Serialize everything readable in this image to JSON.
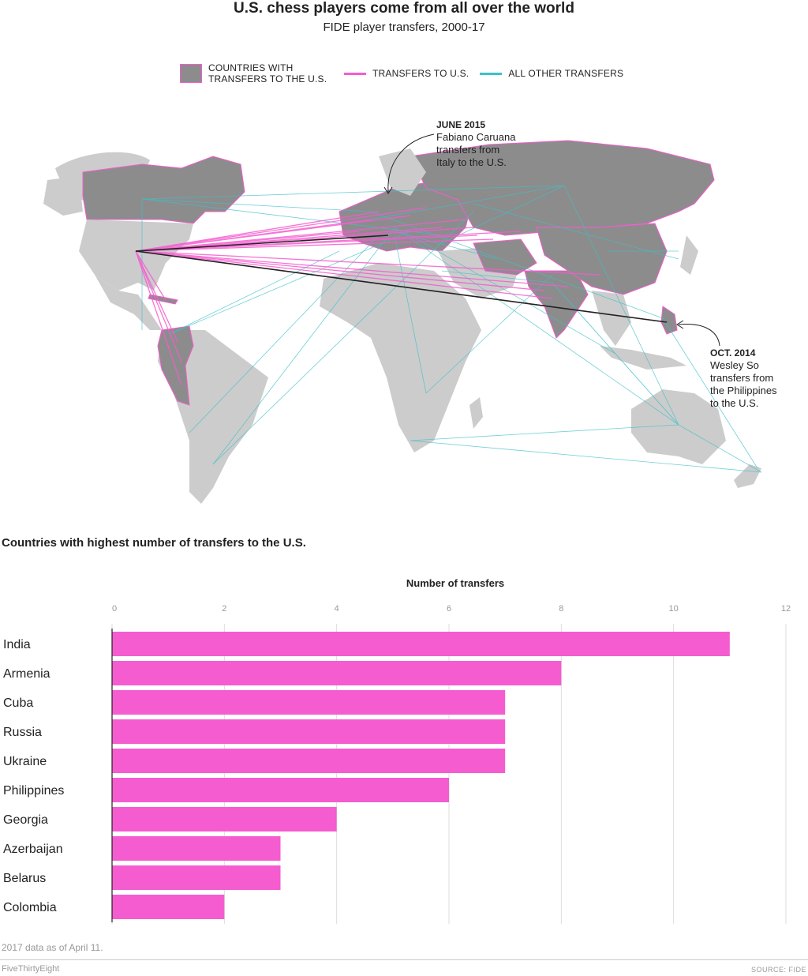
{
  "header": {
    "title": "U.S. chess players come from all over the world",
    "subtitle": "FIDE player transfers, 2000-17"
  },
  "legend": {
    "countries_label_line1": "COUNTRIES WITH",
    "countries_label_line2": "TRANSFERS TO THE U.S.",
    "to_us_label": "TRANSFERS TO U.S.",
    "other_label": "ALL OTHER TRANSFERS"
  },
  "colors": {
    "transfer_country_fill": "#8c8c8c",
    "other_land_fill": "#cccccc",
    "transfer_to_us": "#f55ccf",
    "other_transfer": "#3fc0c8",
    "highlight_line": "#222222",
    "bar": "#f55ccf"
  },
  "annotations": {
    "caruana": {
      "date": "JUNE 2015",
      "line1": "Fabiano Caruana",
      "line2": "transfers from",
      "line3": "Italy to the U.S."
    },
    "so": {
      "date": "OCT. 2014",
      "line1": "Wesley So",
      "line2": "transfers from",
      "line3": "the Philippines",
      "line4": "to the U.S."
    }
  },
  "bar_section": {
    "heading": "Countries with highest number of transfers to the U.S.",
    "axis_title": "Number of transfers"
  },
  "chart_data": {
    "type": "bar",
    "orientation": "horizontal",
    "title": "Countries with highest number of transfers to the U.S.",
    "xlabel": "Number of transfers",
    "categories": [
      "India",
      "Armenia",
      "Cuba",
      "Russia",
      "Ukraine",
      "Philippines",
      "Georgia",
      "Azerbaijan",
      "Belarus",
      "Colombia"
    ],
    "values": [
      11,
      8,
      7,
      7,
      7,
      6,
      4,
      3,
      3,
      2
    ],
    "xlim": [
      0,
      12
    ],
    "ticks": [
      0,
      2,
      4,
      6,
      8,
      10,
      12
    ],
    "tick_labels": [
      "0",
      "2",
      "4",
      "6",
      "8",
      "10",
      "12"
    ],
    "grid": true
  },
  "footer": {
    "note": "2017 data as of April 11.",
    "brand": "FiveThirtyEight",
    "source": "SOURCE: FIDE"
  }
}
